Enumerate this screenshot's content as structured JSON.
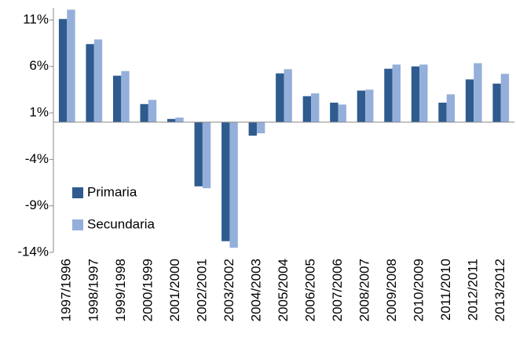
{
  "chart_data": {
    "type": "bar",
    "categories": [
      "1997/1996",
      "1998/1997",
      "1999/1998",
      "2000/1999",
      "2001/2000",
      "2002/2001",
      "2003/2002",
      "2004/2003",
      "2005/2004",
      "2006/2005",
      "2007/2006",
      "2008/2007",
      "2009/2008",
      "2010/2009",
      "2011/2010",
      "2012/2011",
      "2013/2012"
    ],
    "series": [
      {
        "name": "Primaria",
        "color": "#2f5b8f",
        "values": [
          11.1,
          8.4,
          5.0,
          1.95,
          0.35,
          -6.9,
          -12.8,
          -1.45,
          5.25,
          2.8,
          2.1,
          3.4,
          5.75,
          6.0,
          2.1,
          4.6,
          4.15
        ]
      },
      {
        "name": "Secundaria",
        "color": "#95afdb",
        "values": [
          12.1,
          8.9,
          5.5,
          2.4,
          0.5,
          -7.1,
          -13.5,
          -1.2,
          5.7,
          3.1,
          1.9,
          3.5,
          6.2,
          6.2,
          3.0,
          6.35,
          5.2
        ]
      }
    ],
    "ylim": [
      -14,
      12.3
    ],
    "yticks": [
      {
        "value": -14,
        "label": "-14%"
      },
      {
        "value": -9,
        "label": "-9%"
      },
      {
        "value": -4,
        "label": "-4%"
      },
      {
        "value": 1,
        "label": "1%"
      },
      {
        "value": 6,
        "label": "6%"
      },
      {
        "value": 11,
        "label": "11%"
      }
    ],
    "legend": "left"
  }
}
